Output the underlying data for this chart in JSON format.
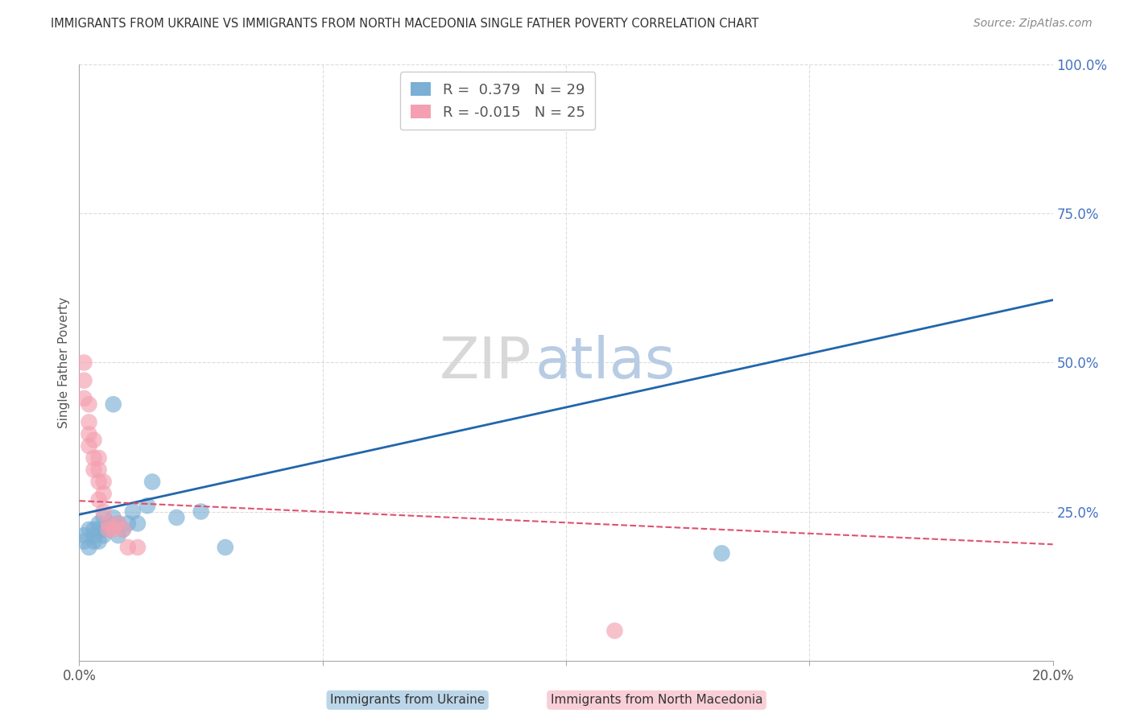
{
  "title": "IMMIGRANTS FROM UKRAINE VS IMMIGRANTS FROM NORTH MACEDONIA SINGLE FATHER POVERTY CORRELATION CHART",
  "source": "Source: ZipAtlas.com",
  "xlabel_ukraine": "Immigrants from Ukraine",
  "xlabel_macedonia": "Immigrants from North Macedonia",
  "ylabel": "Single Father Poverty",
  "R_ukraine": 0.379,
  "N_ukraine": 29,
  "R_macedonia": -0.015,
  "N_macedonia": 25,
  "xlim": [
    0.0,
    0.2
  ],
  "ylim": [
    0.0,
    1.0
  ],
  "xticks": [
    0.0,
    0.05,
    0.1,
    0.15,
    0.2
  ],
  "xtick_labels": [
    "0.0%",
    "",
    "",
    "",
    "20.0%"
  ],
  "yticks": [
    0.0,
    0.25,
    0.5,
    0.75,
    1.0
  ],
  "ytick_labels": [
    "",
    "25.0%",
    "50.0%",
    "75.0%",
    "100.0%"
  ],
  "ukraine_x": [
    0.001,
    0.001,
    0.002,
    0.002,
    0.003,
    0.003,
    0.003,
    0.004,
    0.004,
    0.004,
    0.005,
    0.005,
    0.005,
    0.006,
    0.006,
    0.007,
    0.007,
    0.008,
    0.008,
    0.009,
    0.01,
    0.011,
    0.012,
    0.014,
    0.015,
    0.02,
    0.025,
    0.03,
    0.132
  ],
  "ukraine_y": [
    0.2,
    0.21,
    0.19,
    0.22,
    0.2,
    0.21,
    0.22,
    0.23,
    0.2,
    0.22,
    0.22,
    0.24,
    0.21,
    0.23,
    0.22,
    0.24,
    0.43,
    0.21,
    0.23,
    0.22,
    0.23,
    0.25,
    0.23,
    0.26,
    0.3,
    0.24,
    0.25,
    0.19,
    0.18
  ],
  "macedonia_x": [
    0.001,
    0.001,
    0.001,
    0.002,
    0.002,
    0.002,
    0.002,
    0.003,
    0.003,
    0.003,
    0.004,
    0.004,
    0.004,
    0.004,
    0.005,
    0.005,
    0.005,
    0.006,
    0.006,
    0.007,
    0.008,
    0.009,
    0.01,
    0.012,
    0.11
  ],
  "macedonia_y": [
    0.5,
    0.47,
    0.44,
    0.4,
    0.38,
    0.36,
    0.43,
    0.34,
    0.37,
    0.32,
    0.3,
    0.34,
    0.27,
    0.32,
    0.28,
    0.25,
    0.3,
    0.23,
    0.22,
    0.22,
    0.23,
    0.22,
    0.19,
    0.19,
    0.05
  ],
  "ukraine_line_x0": 0.0,
  "ukraine_line_y0": 0.245,
  "ukraine_line_x1": 0.2,
  "ukraine_line_y1": 0.605,
  "macedonia_line_x0": 0.0,
  "macedonia_line_y0": 0.268,
  "macedonia_line_x1": 0.2,
  "macedonia_line_y1": 0.195,
  "ukraine_color": "#7bafd4",
  "macedonia_color": "#f4a0b0",
  "ukraine_line_color": "#2166ac",
  "macedonia_line_color": "#e05070",
  "watermark_zip": "ZIP",
  "watermark_atlas": "atlas",
  "background_color": "#ffffff",
  "grid_color": "#cccccc"
}
